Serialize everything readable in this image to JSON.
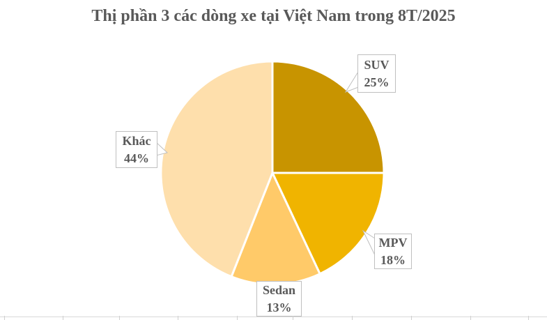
{
  "title": "Thị phần 3 các dòng xe tại Việt Nam trong 8T/2025",
  "chart_data": {
    "type": "pie",
    "title": "Thị phần 3 các dòng xe tại Việt Nam trong 8T/2025",
    "unit": "percent",
    "start_angle_deg": 0,
    "direction": "clockwise",
    "legend_position": "none",
    "label_style": "callout boxes with category name and percentage",
    "slices": [
      {
        "key": "suv",
        "label": "SUV",
        "value": 25,
        "pct": "25%",
        "color": "#C89400"
      },
      {
        "key": "mpv",
        "label": "MPV",
        "value": 18,
        "pct": "18%",
        "color": "#F0B400"
      },
      {
        "key": "sedan",
        "label": "Sedan",
        "value": 13,
        "pct": "13%",
        "color": "#FFCA69"
      },
      {
        "key": "khac",
        "label": "Khác",
        "value": 44,
        "pct": "44%",
        "color": "#FEDFAC"
      }
    ],
    "colors": {
      "title_text": "#595959",
      "label_text": "#595959",
      "label_box_border": "#BFBFBF",
      "label_box_fill": "#FFFFFF",
      "slice_separator": "#FFFFFF",
      "background": "#FFFFFF"
    }
  },
  "grid": {
    "bottom_line_color": "#D9D9D9",
    "tick_positions": [
      6,
      90,
      171,
      255,
      340,
      420,
      505,
      590,
      675,
      758
    ]
  }
}
